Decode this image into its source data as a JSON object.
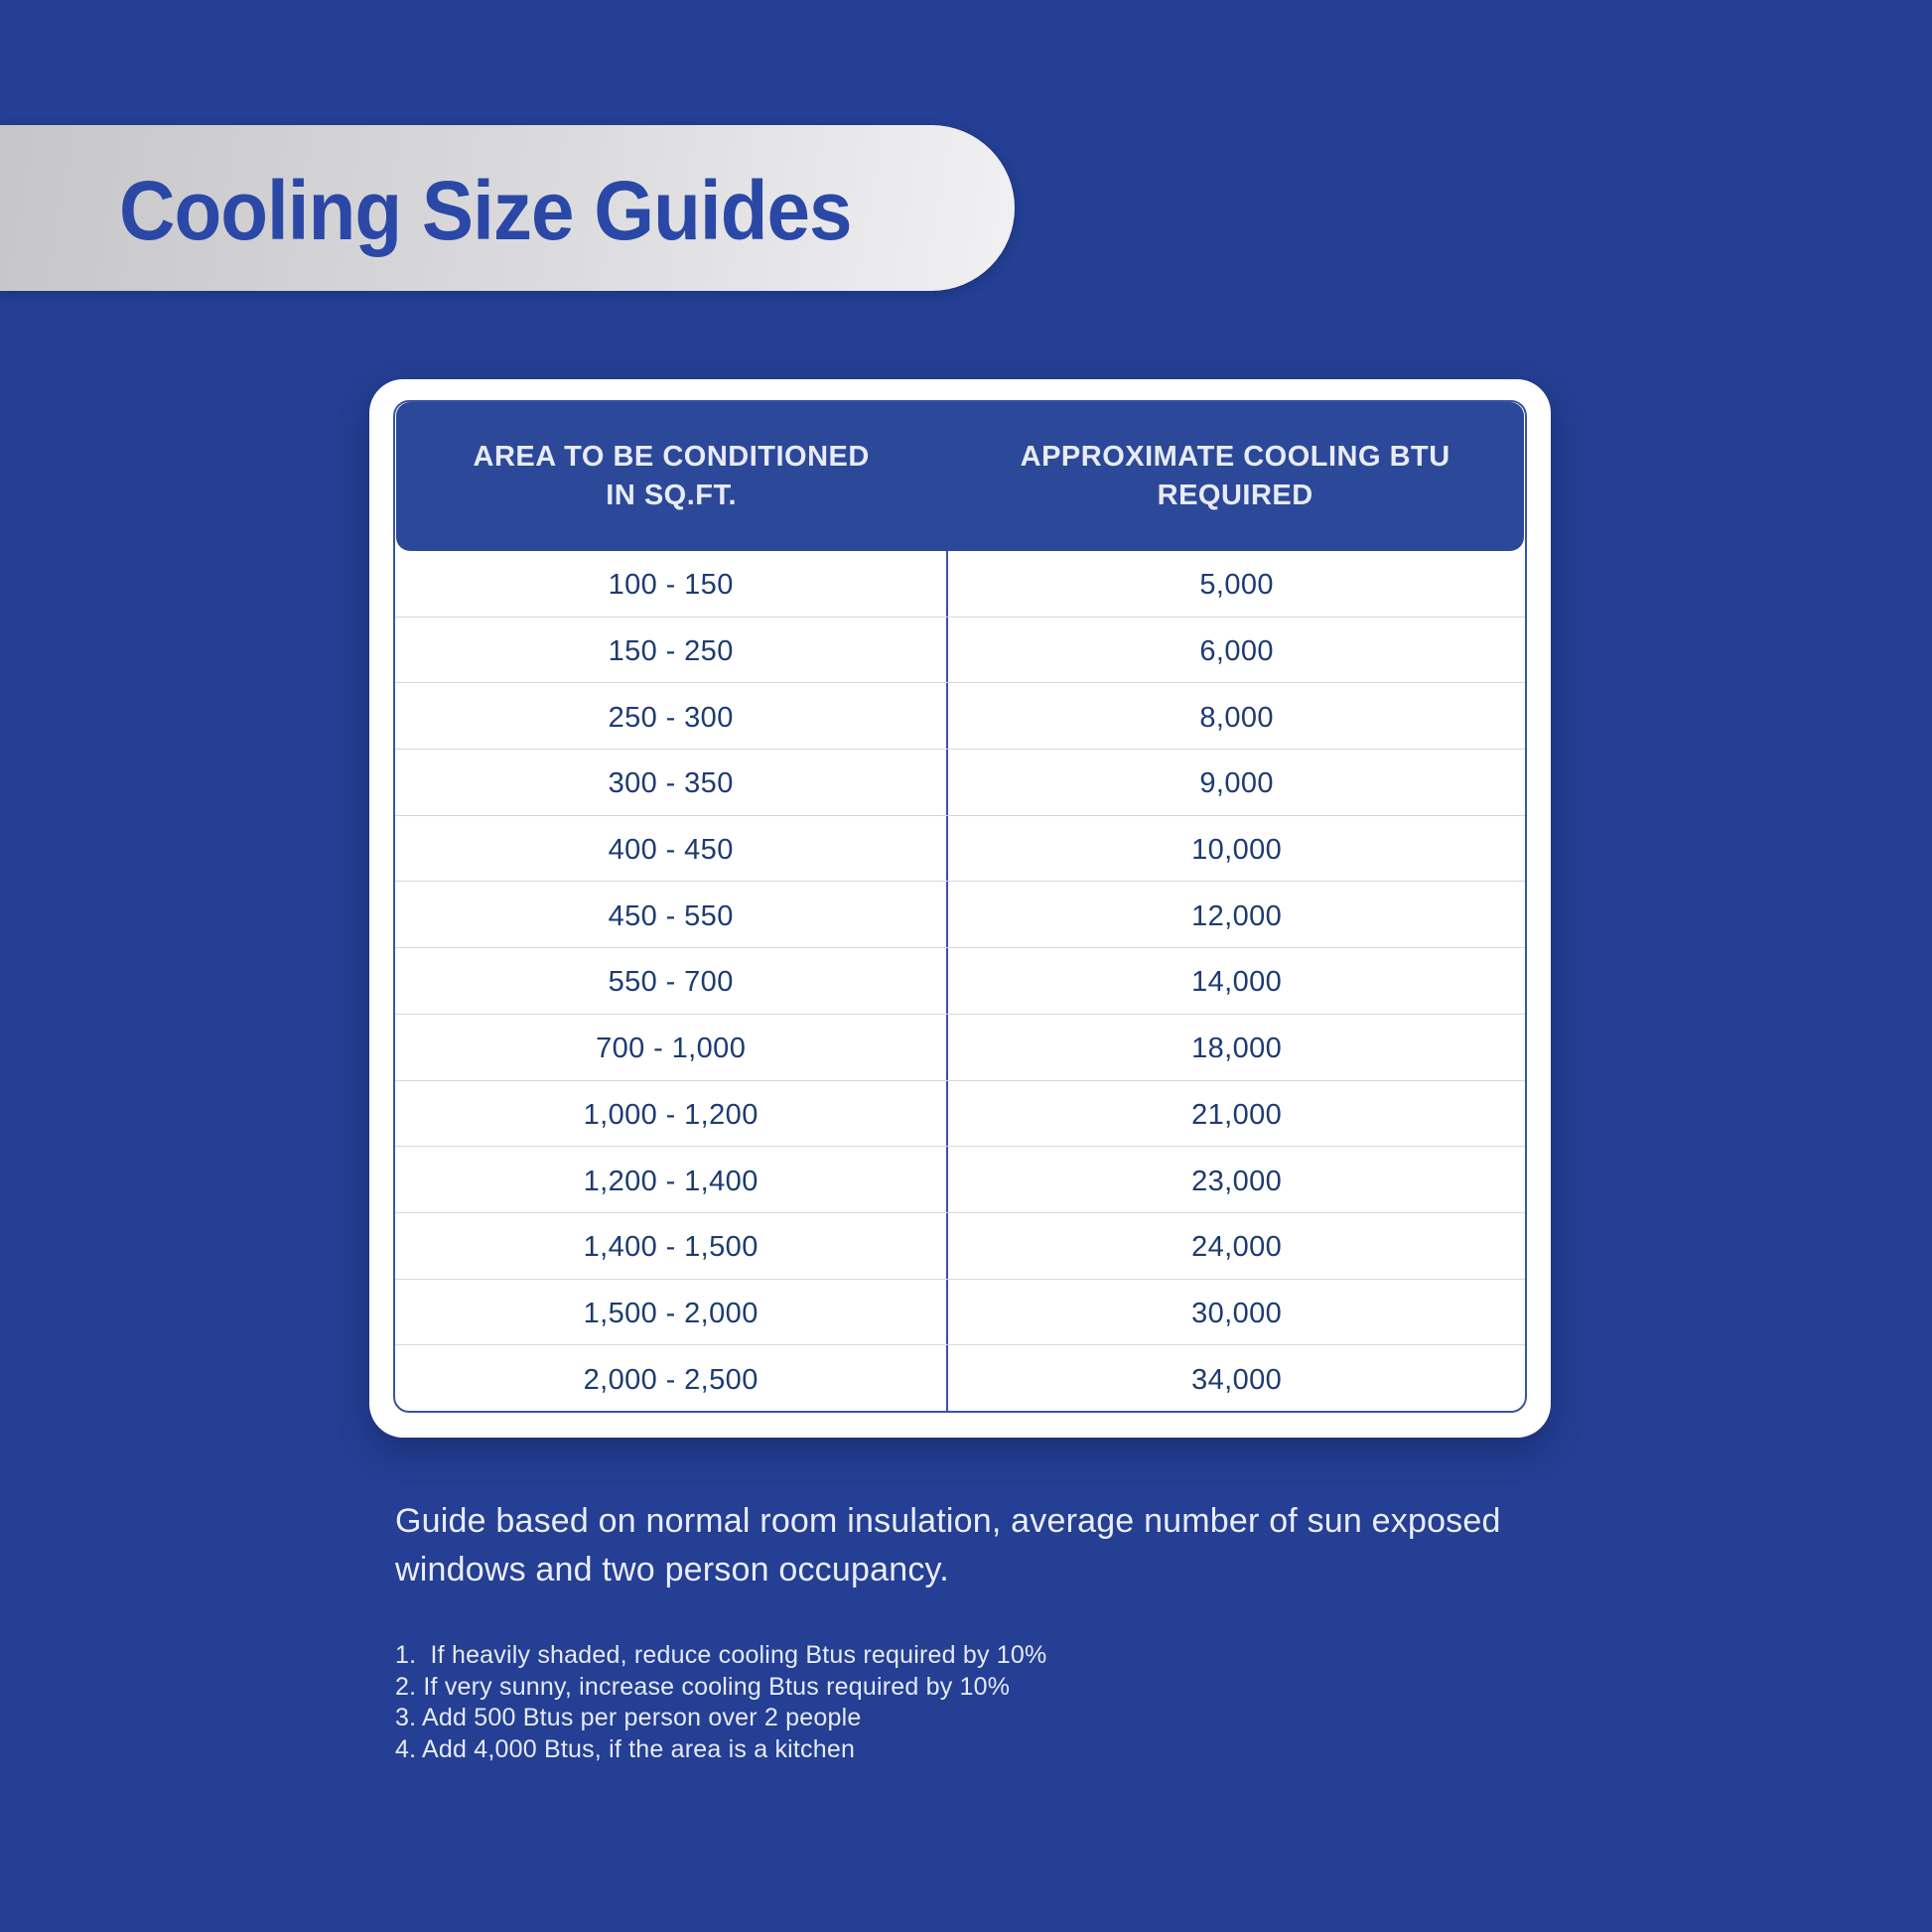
{
  "palette": {
    "bg": "#243F93",
    "banner-a": "#C6C6C8",
    "banner-b": "#DBDBDD",
    "banner-c": "#F1F1F3",
    "title": "#2B48A7",
    "card": "#FFFFFF",
    "card-edge": "#EDF1F9",
    "header-bg": "#2C4899",
    "header-text": "#E8EBF3",
    "cell": "#1D3B72",
    "strong": "#3A53A8",
    "soft": "#D6D8DD",
    "note": "#EAEDF7",
    "list": "#E6EAF5"
  },
  "banner": {
    "title": "Cooling Size Guides"
  },
  "table": {
    "columns": [
      {
        "line1": "AREA TO BE CONDITIONED",
        "line2": "IN SQ.FT."
      },
      {
        "line1": "APPROXIMATE COOLING BTU",
        "line2": "REQUIRED"
      }
    ],
    "rows": [
      {
        "area": "100 - 150",
        "btu": "5,000"
      },
      {
        "area": "150 - 250",
        "btu": "6,000"
      },
      {
        "area": "250 - 300",
        "btu": "8,000"
      },
      {
        "area": "300 - 350",
        "btu": "9,000"
      },
      {
        "area": "400 - 450",
        "btu": "10,000"
      },
      {
        "area": "450 - 550",
        "btu": "12,000"
      },
      {
        "area": "550 - 700",
        "btu": "14,000"
      },
      {
        "area": "700 - 1,000",
        "btu": "18,000"
      },
      {
        "area": "1,000 - 1,200",
        "btu": "21,000"
      },
      {
        "area": "1,200 - 1,400",
        "btu": "23,000"
      },
      {
        "area": "1,400 - 1,500",
        "btu": "24,000"
      },
      {
        "area": "1,500 - 2,000",
        "btu": "30,000"
      },
      {
        "area": "2,000 - 2,500",
        "btu": "34,000"
      }
    ]
  },
  "footer": {
    "note": "Guide based on normal room insulation, average number of sun exposed windows and two person occupancy.",
    "items": [
      "1.  If heavily shaded, reduce cooling Btus required by 10%",
      "2. If very sunny, increase cooling Btus required by 10%",
      "3. Add 500 Btus per person over 2 people",
      "4. Add 4,000 Btus, if the area is a kitchen"
    ]
  }
}
